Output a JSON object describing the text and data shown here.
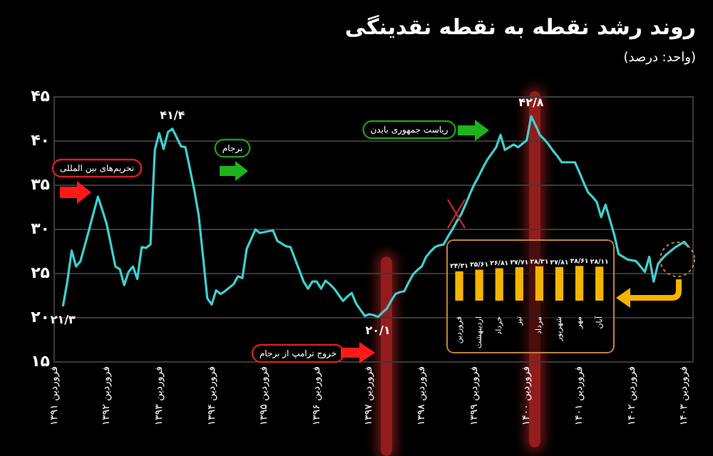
{
  "chart_data": [
    {
      "type": "line",
      "title": "روند رشد نقطه به نقطه نقدینگی",
      "subtitle": "(واحد: درصد)",
      "categories": [
        "فروردین ۱۳۹۱",
        null,
        null,
        null,
        null,
        null,
        null,
        null,
        null,
        null,
        null,
        null,
        "فروردین ۱۳۹۲",
        null,
        null,
        null,
        null,
        null,
        null,
        null,
        null,
        null,
        null,
        null,
        "فروردین ۱۳۹۳",
        null,
        null,
        null,
        null,
        null,
        null,
        null,
        null,
        null,
        null,
        null,
        "فروردین ۱۳۹۴",
        null,
        null,
        null,
        null,
        null,
        null,
        null,
        null,
        null,
        null,
        null,
        "فروردین ۱۳۹۵",
        null,
        null,
        null,
        null,
        null,
        null,
        null,
        null,
        null,
        null,
        null,
        "فروردین ۱۳۹۶",
        null,
        null,
        null,
        null,
        null,
        null,
        null,
        null,
        null,
        null,
        null,
        "فروردین ۱۳۹۷",
        null,
        null,
        null,
        null,
        null,
        null,
        null,
        null,
        null,
        null,
        null,
        "فروردین ۱۳۹۸",
        null,
        null,
        null,
        null,
        null,
        null,
        null,
        null,
        null,
        null,
        null,
        "فروردین ۱۳۹۹",
        null,
        null,
        null,
        null,
        null,
        null,
        null,
        null,
        null,
        null,
        null,
        "فروردین ۱۴۰۰",
        null,
        null,
        null,
        null,
        null,
        null,
        null,
        null,
        null,
        null,
        null,
        "فروردین ۱۴۰۱",
        null,
        null,
        null,
        null,
        null,
        null,
        null,
        null,
        null,
        null,
        null,
        "فروردین ۱۴۰۲",
        null,
        null,
        null,
        null,
        null,
        null,
        null,
        null,
        null,
        null,
        null,
        "فروردین ۱۴۰۳",
        null,
        null
      ],
      "series": [
        {
          "color": "#3fcfcf",
          "values": [
            null,
            null,
            21.3,
            24.1,
            27.6,
            25.8,
            26.4,
            28.2,
            30.0,
            31.9,
            33.7,
            32.2,
            30.6,
            28.2,
            25.8,
            25.5,
            23.7,
            25.2,
            25.8,
            24.4,
            28.0,
            27.9,
            28.3,
            39.0,
            40.9,
            39.1,
            41.0,
            41.4,
            40.4,
            39.4,
            39.3,
            36.9,
            34.5,
            31.7,
            27.0,
            22.2,
            21.5,
            23.1,
            22.7,
            23.0,
            23.4,
            23.8,
            24.7,
            24.5,
            27.8,
            28.9,
            30.0,
            29.6,
            29.7,
            29.8,
            29.9,
            28.7,
            28.4,
            28.1,
            28.0,
            26.7,
            25.4,
            24.1,
            23.3,
            24.1,
            24.1,
            23.3,
            24.2,
            23.8,
            23.3,
            22.6,
            21.9,
            22.4,
            22.8,
            21.6,
            20.9,
            20.2,
            20.4,
            20.3,
            20.1,
            20.6,
            21.0,
            21.9,
            22.7,
            22.9,
            23.0,
            24.0,
            24.9,
            25.4,
            25.8,
            26.9,
            27.5,
            28.0,
            28.2,
            28.3,
            29.2,
            30.0,
            30.9,
            31.7,
            32.8,
            34.0,
            35.1,
            36.0,
            37.0,
            37.9,
            38.6,
            39.3,
            40.7,
            39.0,
            39.3,
            39.6,
            39.3,
            39.7,
            40.1,
            42.8,
            41.8,
            40.7,
            40.2,
            39.6,
            38.9,
            38.3,
            37.6,
            37.6,
            37.6,
            37.6,
            36.5,
            35.3,
            34.2,
            33.7,
            33.1,
            31.4,
            32.8,
            31.1,
            29.4,
            27.2,
            26.9,
            26.6,
            26.5,
            26.4,
            25.8,
            25.2,
            26.9,
            24.1,
            26.1,
            26.7,
            27.2,
            27.6,
            28.0,
            28.3,
            28.6,
            28.0,
            null
          ]
        }
      ],
      "ylim": [
        15,
        45
      ],
      "yticks": [
        {
          "value": 15,
          "label": "۱۵"
        },
        {
          "value": 20,
          "label": "۲۰"
        },
        {
          "value": 25,
          "label": "۲۵"
        },
        {
          "value": 30,
          "label": "۳۰"
        },
        {
          "value": 35,
          "label": "۳۵"
        },
        {
          "value": 40,
          "label": "۴۰"
        },
        {
          "value": 45,
          "label": "۴۵"
        }
      ],
      "grid": "y",
      "marker": "none",
      "line_style": "solid",
      "annotations": [
        {
          "text": "۲۱/۳",
          "y": 21.3
        },
        {
          "text": "۴۱/۴",
          "y": 41.4
        },
        {
          "text": "۲۰/۱",
          "y": 20.1
        },
        {
          "text": "۴۲/۸",
          "y": 42.8
        },
        "تحریم‌های بین المللی",
        "برجام",
        "ریاست جمهوری بایدن",
        "خروج ترامپ از برجام"
      ]
    },
    {
      "type": "bar",
      "categories": [
        "فروردین",
        "اردیبهشت",
        "خرداد",
        "تیر",
        "مرداد",
        "شهریور",
        "مهر",
        "آبان"
      ],
      "values": [
        24.31,
        25.61,
        26.81,
        27.71,
        28.31,
        27.81,
        28.61,
        28.11
      ],
      "value_labels": [
        "۲۴/۳۱",
        "۲۵/۶۱",
        "۲۶/۸۱",
        "۲۷/۷۱",
        "۲۸/۳۱",
        "۲۷/۸۱",
        "۲۸/۶۱",
        "۲۸/۱۱"
      ],
      "color": "#f5b400",
      "tick_labels": "x"
    }
  ]
}
